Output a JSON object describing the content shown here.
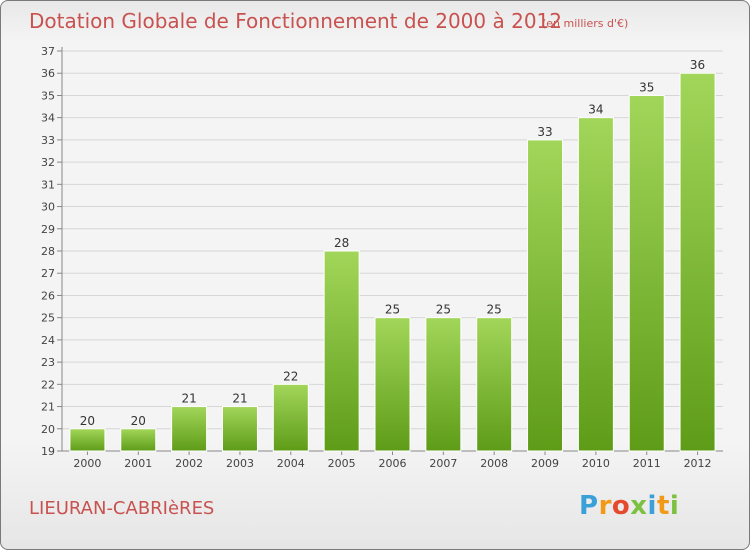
{
  "title": "Dotation Globale de Fonctionnement de 2000 à 2012",
  "subtitle": "(en milliers d'€)",
  "commune": "LIEURAN-CABRIèRES",
  "logo": {
    "letters": [
      "P",
      "r",
      "o",
      "x",
      "i",
      "t",
      "i"
    ],
    "colors": [
      "#3aa0d8",
      "#f29a18",
      "#e64a2e",
      "#7cc142",
      "#3aa0d8",
      "#f29a18",
      "#7cc142"
    ]
  },
  "colors": {
    "bar_top": "#a2d65a",
    "bar_bottom": "#5e9c18",
    "text": "#c8524f",
    "grid": "#d6d6d6",
    "axis": "#888888"
  },
  "chart_data": {
    "type": "bar",
    "categories": [
      "2000",
      "2001",
      "2002",
      "2003",
      "2004",
      "2005",
      "2006",
      "2007",
      "2008",
      "2009",
      "2010",
      "2011",
      "2012"
    ],
    "values": [
      20,
      20,
      21,
      21,
      22,
      28,
      25,
      25,
      25,
      33,
      34,
      35,
      36
    ],
    "title": "Dotation Globale de Fonctionnement de 2000 à 2012",
    "xlabel": "",
    "ylabel": "",
    "ylim": [
      19,
      37
    ],
    "yticks": [
      19,
      20,
      21,
      22,
      23,
      24,
      25,
      26,
      27,
      28,
      29,
      30,
      31,
      32,
      33,
      34,
      35,
      36,
      37
    ],
    "grid": true,
    "legend": "none"
  }
}
